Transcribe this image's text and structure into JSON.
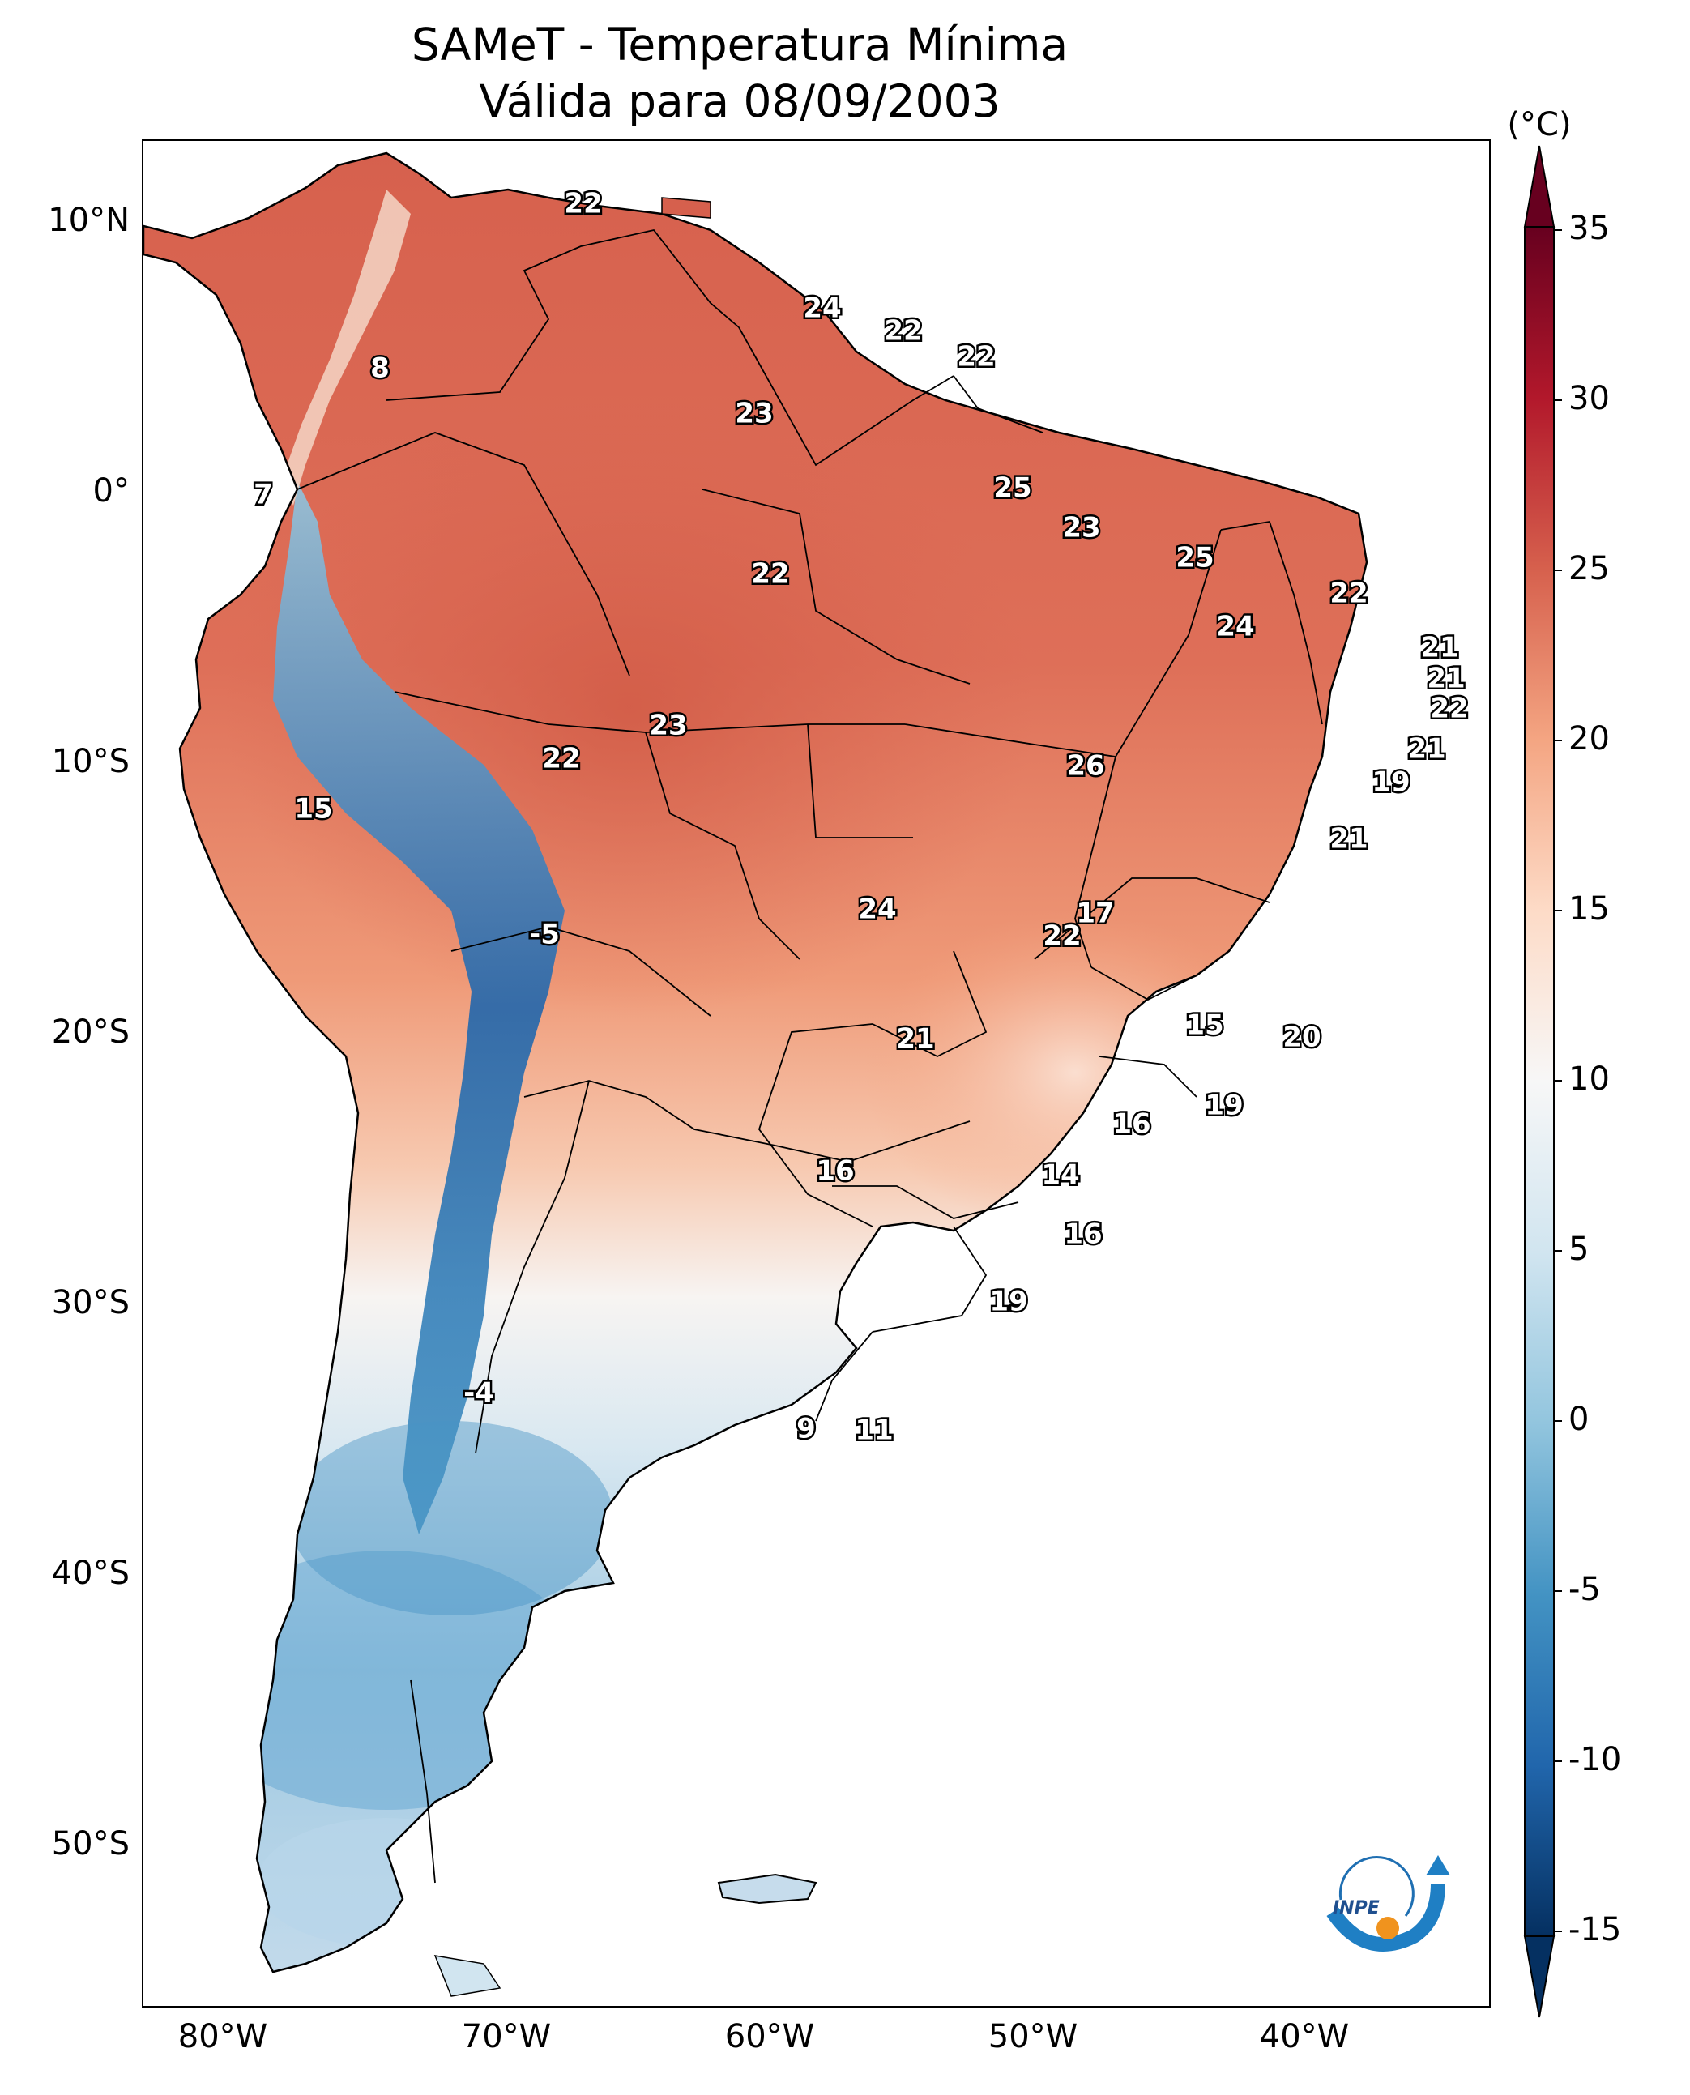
{
  "title": {
    "line1": "SAMeT - Temperatura Mínima",
    "line2": "Válida para 08/09/2003"
  },
  "colorbar": {
    "unit": "(°C)",
    "ticks": [
      "35",
      "30",
      "25",
      "20",
      "15",
      "10",
      "5",
      "0",
      "-5",
      "-10",
      "-15"
    ],
    "range": [
      -15,
      35
    ],
    "extend": "both",
    "colormap": "RdBu_r"
  },
  "axes": {
    "lat_labels": [
      "10°N",
      "0°",
      "10°S",
      "20°S",
      "30°S",
      "40°S",
      "50°S"
    ],
    "lon_labels": [
      "80°W",
      "70°W",
      "60°W",
      "50°W",
      "40°W"
    ]
  },
  "city_values": [
    {
      "name": "v1",
      "text": "22"
    },
    {
      "name": "v2",
      "text": "24"
    },
    {
      "name": "v3",
      "text": "22"
    },
    {
      "name": "v4",
      "text": "22"
    },
    {
      "name": "v5",
      "text": "8"
    },
    {
      "name": "v6",
      "text": "23"
    },
    {
      "name": "v7",
      "text": "7"
    },
    {
      "name": "v8",
      "text": "25"
    },
    {
      "name": "v9",
      "text": "23"
    },
    {
      "name": "v10",
      "text": "22"
    },
    {
      "name": "v11",
      "text": "25"
    },
    {
      "name": "v12",
      "text": "22"
    },
    {
      "name": "v13",
      "text": "24"
    },
    {
      "name": "v14",
      "text": "21"
    },
    {
      "name": "v15",
      "text": "21"
    },
    {
      "name": "v16",
      "text": "22"
    },
    {
      "name": "v17",
      "text": "23"
    },
    {
      "name": "v18",
      "text": "22"
    },
    {
      "name": "v19",
      "text": "26"
    },
    {
      "name": "v20",
      "text": "21"
    },
    {
      "name": "v21",
      "text": "19"
    },
    {
      "name": "v22",
      "text": "15"
    },
    {
      "name": "v23",
      "text": "21"
    },
    {
      "name": "v24",
      "text": "-5"
    },
    {
      "name": "v25",
      "text": "24"
    },
    {
      "name": "v26",
      "text": "17"
    },
    {
      "name": "v27",
      "text": "22"
    },
    {
      "name": "v28",
      "text": "21"
    },
    {
      "name": "v29",
      "text": "15"
    },
    {
      "name": "v30",
      "text": "20"
    },
    {
      "name": "v31",
      "text": "16"
    },
    {
      "name": "v32",
      "text": "19"
    },
    {
      "name": "v33",
      "text": "16"
    },
    {
      "name": "v34",
      "text": "14"
    },
    {
      "name": "v35",
      "text": "16"
    },
    {
      "name": "v36",
      "text": "19"
    },
    {
      "name": "v37",
      "text": "-4"
    },
    {
      "name": "v38",
      "text": "9"
    },
    {
      "name": "v39",
      "text": "11"
    }
  ],
  "logo": {
    "text": "INPE"
  }
}
